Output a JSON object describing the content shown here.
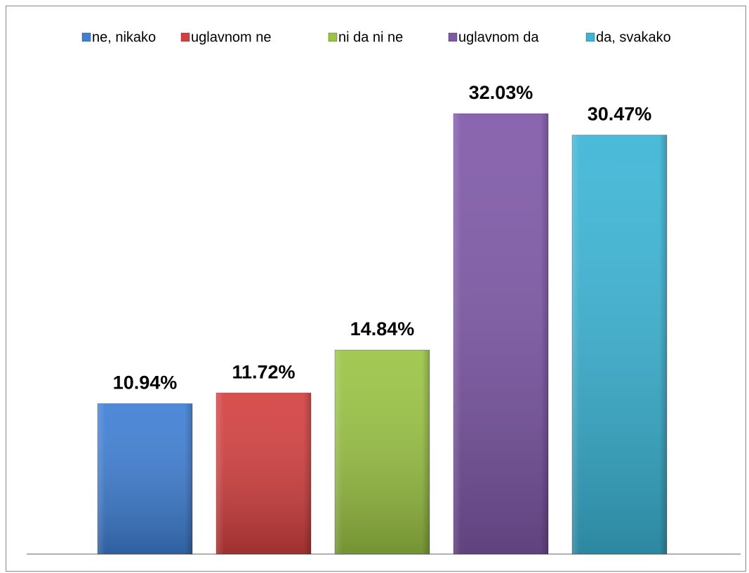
{
  "chart_data": {
    "type": "bar",
    "series": [
      {
        "name": "ne, nikako",
        "color": "#3f7fd4",
        "values": [
          10.94
        ],
        "value_labels": [
          "10.94%"
        ]
      },
      {
        "name": "uglavnom ne",
        "color": "#d44040",
        "values": [
          11.72
        ],
        "value_labels": [
          "11.72%"
        ]
      },
      {
        "name": "ni da ni ne",
        "color": "#9bc444",
        "values": [
          14.84
        ],
        "value_labels": [
          "14.84%"
        ]
      },
      {
        "name": "uglavnom da",
        "color": "#7f58a8",
        "values": [
          32.03
        ],
        "value_labels": [
          "32.03%"
        ]
      },
      {
        "name": "da, svakako",
        "color": "#3bb5d6",
        "values": [
          30.47
        ],
        "value_labels": [
          "30.47%"
        ]
      }
    ],
    "legend": "top"
  }
}
